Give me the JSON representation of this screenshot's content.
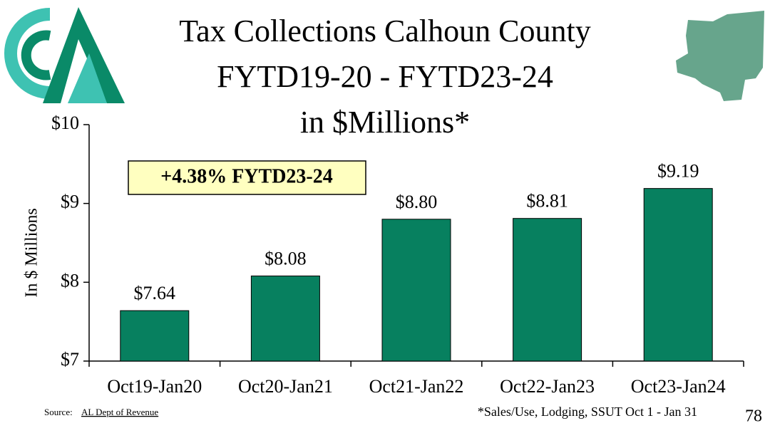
{
  "chart_data": {
    "type": "bar",
    "title": [
      "Tax Collections Calhoun County",
      "FYTD19-20 - FYTD23-24",
      "in $Millions*"
    ],
    "y_label": "In $ Millions",
    "annotation": "+4.38% FYTD23-24",
    "categories": [
      "Oct19-Jan20",
      "Oct20-Jan21",
      "Oct21-Jan22",
      "Oct22-Jan23",
      "Oct23-Jan24"
    ],
    "values": [
      7.64,
      8.08,
      8.8,
      8.81,
      9.19
    ],
    "value_labels": [
      "$7.64",
      "$8.08",
      "$8.80",
      "$8.81",
      "$9.19"
    ],
    "color": "#07805f",
    "ylim": [
      7,
      10
    ],
    "yticks": [
      {
        "value": 7,
        "label": "$7"
      },
      {
        "value": 8,
        "label": "$8"
      },
      {
        "value": 9,
        "label": "$9"
      },
      {
        "value": 10,
        "label": "$10"
      }
    ],
    "source_prefix": "Source:",
    "source": "AL Dept of Revenue",
    "footnote": "*Sales/Use, Lodging, SSUT Oct 1 - Jan 31",
    "page_number": "78"
  }
}
